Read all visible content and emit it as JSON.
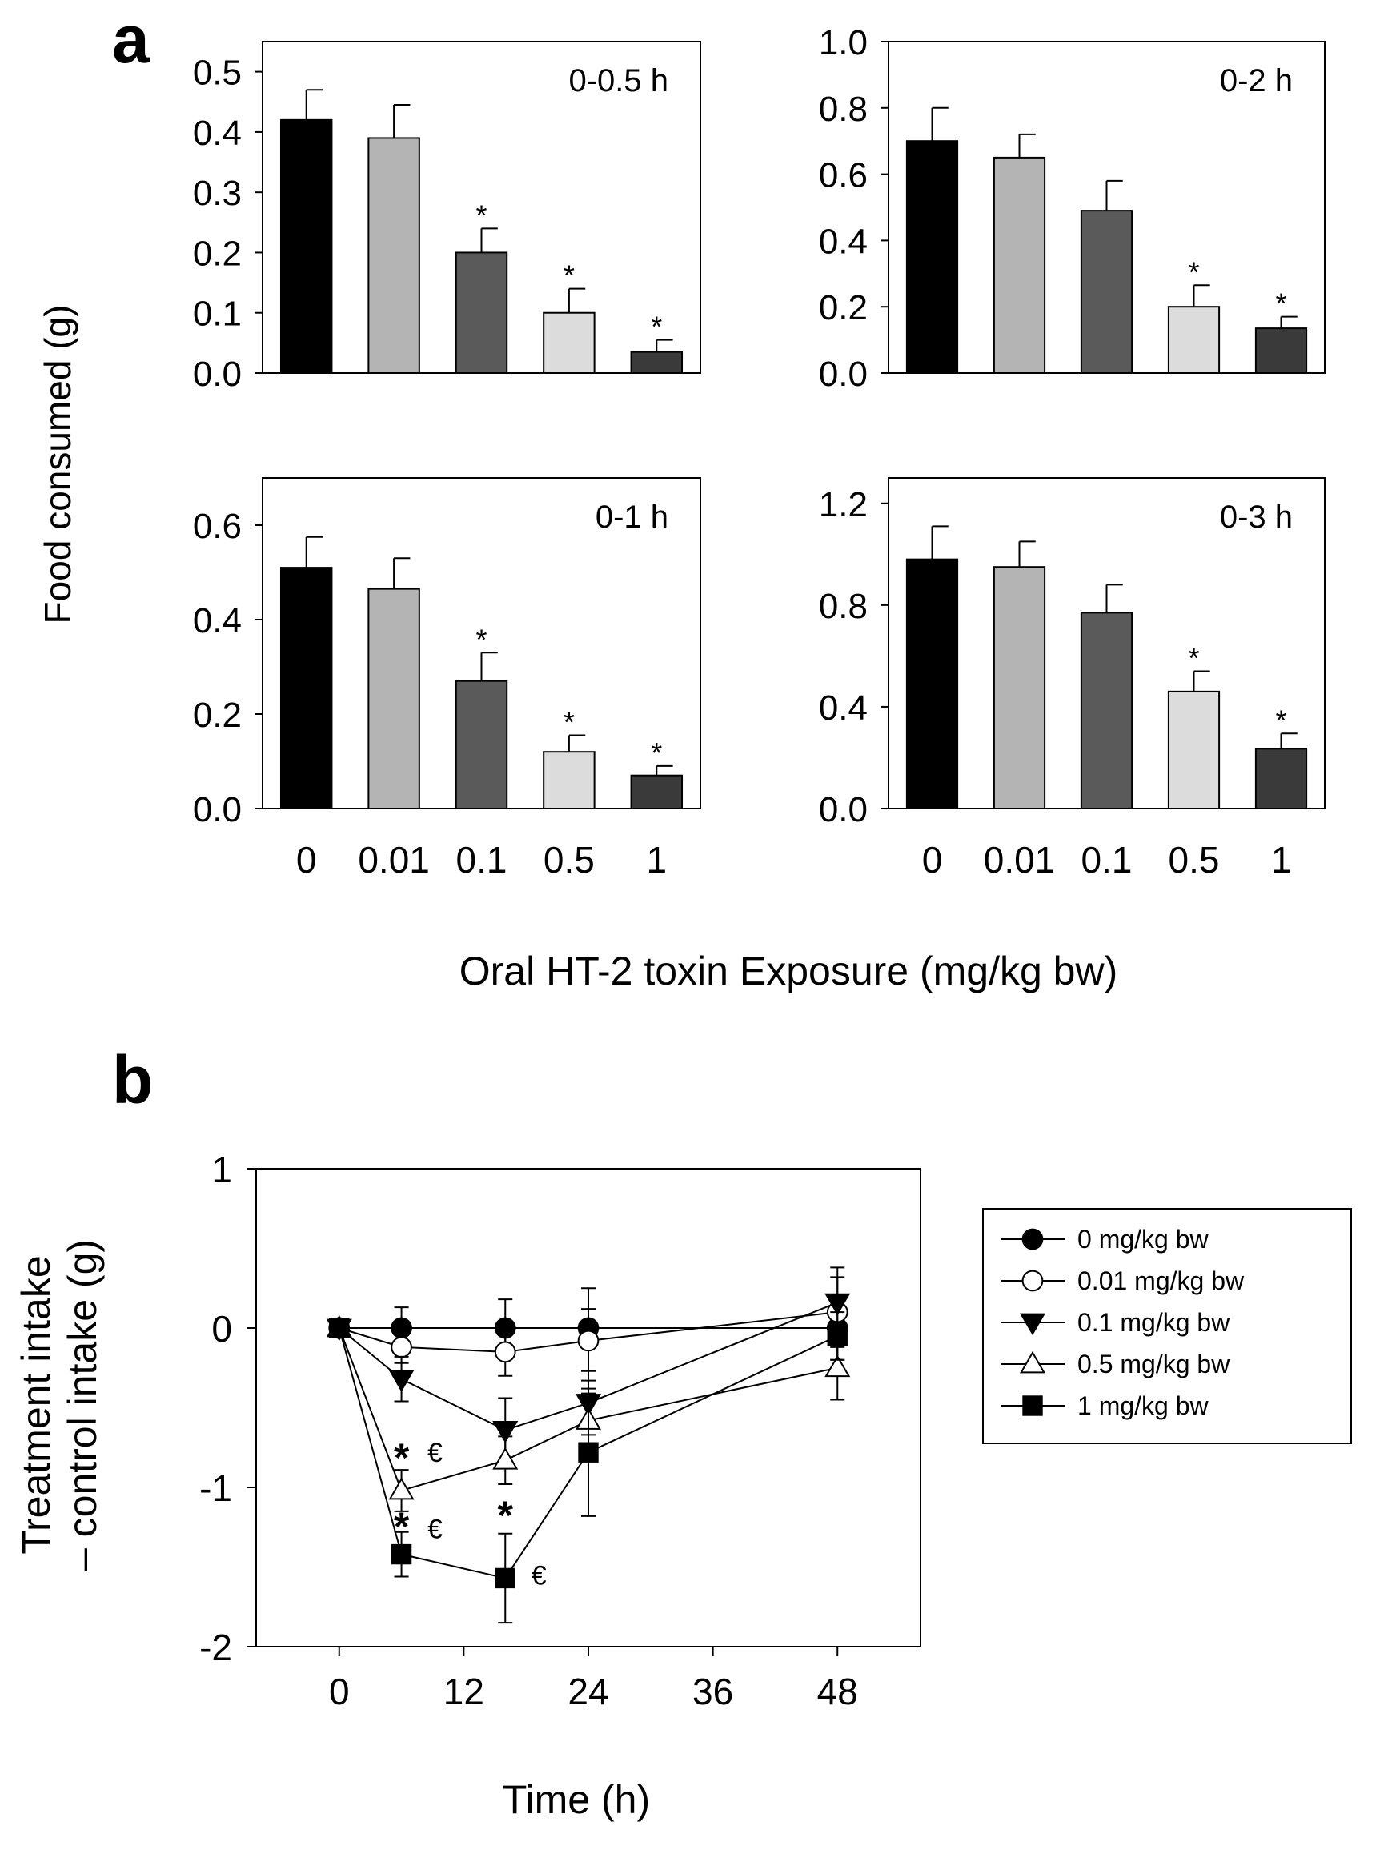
{
  "panel_a_letter": "a",
  "panel_b_letter": "b",
  "colors": {
    "dose_0": "#000000",
    "dose_0_01": "#b4b4b4",
    "dose_0_1": "#5a5a5a",
    "dose_0_5": "#dcdcdc",
    "dose_1": "#3a3a3a"
  },
  "chart_data": [
    {
      "type": "bar",
      "panel": "a",
      "title": "0-0.5 h",
      "ylabel": "Food consumed (g)",
      "xlabel": "Oral HT-2 toxin Exposure (mg/kg bw)",
      "categories": [
        "0",
        "0.01",
        "0.1",
        "0.5",
        "1"
      ],
      "values": [
        0.42,
        0.39,
        0.2,
        0.1,
        0.035
      ],
      "errors": [
        0.05,
        0.055,
        0.04,
        0.04,
        0.02
      ],
      "significant": [
        false,
        false,
        true,
        true,
        true
      ],
      "ylim": [
        0,
        0.55
      ],
      "yticks": [
        "0.0",
        "0.1",
        "0.2",
        "0.3",
        "0.4",
        "0.5"
      ],
      "grid": false
    },
    {
      "type": "bar",
      "panel": "a",
      "title": "0-2 h",
      "categories": [
        "0",
        "0.01",
        "0.1",
        "0.5",
        "1"
      ],
      "values": [
        0.7,
        0.65,
        0.49,
        0.2,
        0.135
      ],
      "errors": [
        0.1,
        0.07,
        0.09,
        0.065,
        0.035
      ],
      "significant": [
        false,
        false,
        false,
        true,
        true
      ],
      "ylim": [
        0,
        1.0
      ],
      "yticks": [
        "0.0",
        "0.2",
        "0.4",
        "0.6",
        "0.8",
        "1.0"
      ],
      "grid": false
    },
    {
      "type": "bar",
      "panel": "a",
      "title": "0-1 h",
      "categories": [
        "0",
        "0.01",
        "0.1",
        "0.5",
        "1"
      ],
      "values": [
        0.51,
        0.465,
        0.27,
        0.12,
        0.07
      ],
      "errors": [
        0.065,
        0.065,
        0.06,
        0.035,
        0.02
      ],
      "significant": [
        false,
        false,
        true,
        true,
        true
      ],
      "ylim": [
        0,
        0.7
      ],
      "yticks": [
        "0.0",
        "0.2",
        "0.4",
        "0.6"
      ],
      "grid": false
    },
    {
      "type": "bar",
      "panel": "a",
      "title": "0-3 h",
      "categories": [
        "0",
        "0.01",
        "0.1",
        "0.5",
        "1"
      ],
      "values": [
        0.98,
        0.95,
        0.77,
        0.46,
        0.235
      ],
      "errors": [
        0.13,
        0.1,
        0.11,
        0.08,
        0.06
      ],
      "significant": [
        false,
        false,
        false,
        true,
        true
      ],
      "ylim": [
        0,
        1.3
      ],
      "yticks": [
        "0.0",
        "0.4",
        "0.8",
        "1.2"
      ],
      "grid": false
    },
    {
      "type": "line",
      "panel": "b",
      "xlabel": "Time (h)",
      "ylabel_line1": "Treatment intake",
      "ylabel_line2": "– control intake (g)",
      "xlim": [
        -8,
        56
      ],
      "ylim": [
        -2,
        1
      ],
      "xticks": [
        "0",
        "12",
        "24",
        "36",
        "48"
      ],
      "yticks": [
        "-2",
        "-1",
        "0",
        "1"
      ],
      "legend_position": "right",
      "grid": false,
      "series": [
        {
          "name": "0 mg/kg bw",
          "marker": "circle-filled",
          "x": [
            0,
            6,
            16,
            24,
            48
          ],
          "y": [
            0,
            0,
            0,
            0,
            0
          ],
          "err": [
            0,
            0.13,
            0.18,
            0.12,
            0.2
          ]
        },
        {
          "name": "0.01 mg/kg bw",
          "marker": "circle-open",
          "x": [
            0,
            6,
            16,
            24,
            48
          ],
          "y": [
            0,
            -0.12,
            -0.15,
            -0.08,
            0.1
          ],
          "err": [
            0,
            0.1,
            0.15,
            0.33,
            0.22
          ]
        },
        {
          "name": "0.1 mg/kg bw",
          "marker": "triangle-down-filled",
          "x": [
            0,
            6,
            16,
            24,
            48
          ],
          "y": [
            0,
            -0.32,
            -0.64,
            -0.47,
            0.16
          ],
          "err": [
            0,
            0.14,
            0.2,
            0.2,
            0.22
          ]
        },
        {
          "name": "0.5 mg/kg bw",
          "marker": "triangle-up-open",
          "x": [
            0,
            6,
            16,
            24,
            48
          ],
          "y": [
            0,
            -1.02,
            -0.83,
            -0.58,
            -0.25
          ],
          "err": [
            0,
            0.13,
            0.15,
            0.25,
            0.2
          ]
        },
        {
          "name": "1 mg/kg bw",
          "marker": "square-filled",
          "x": [
            0,
            6,
            16,
            24,
            48
          ],
          "y": [
            0,
            -1.42,
            -1.57,
            -0.78,
            -0.05
          ],
          "err": [
            0,
            0.14,
            0.28,
            0.4,
            0.15
          ]
        }
      ],
      "annotations": [
        {
          "text": "*",
          "x": 6,
          "y": -0.77
        },
        {
          "text": "€",
          "x": 8.5,
          "y": -0.78
        },
        {
          "text": "*",
          "x": 6,
          "y": -1.2
        },
        {
          "text": "€",
          "x": 8.5,
          "y": -1.26
        },
        {
          "text": "*",
          "x": 16,
          "y": -1.13
        },
        {
          "text": "€",
          "x": 18.5,
          "y": -1.55
        }
      ]
    }
  ]
}
